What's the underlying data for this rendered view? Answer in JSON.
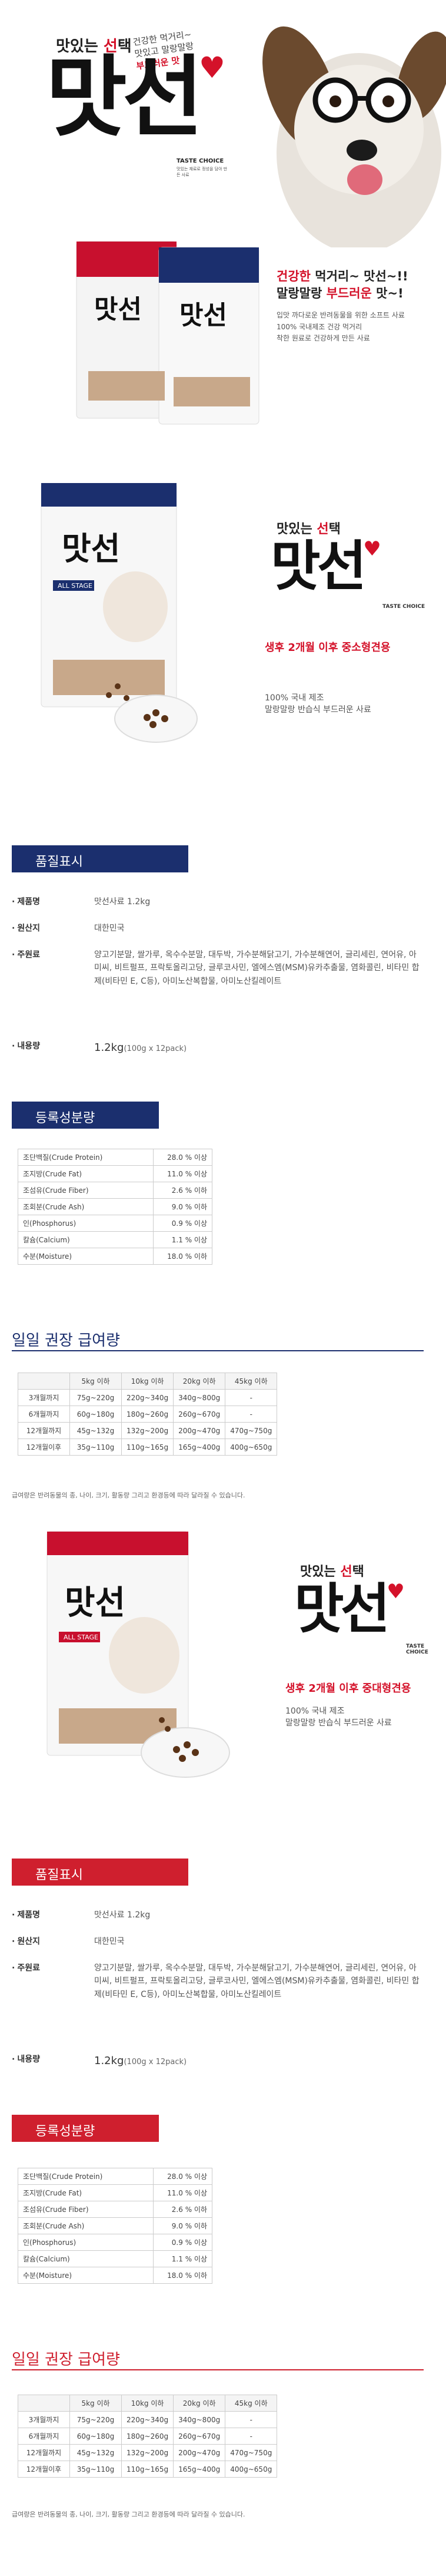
{
  "hero": {
    "title_plain1": "맛",
    "title_plain2": "있는 ",
    "title_red": "선",
    "title_plain3": "택",
    "tagline_1": "건강한 먹거리~",
    "tagline_2": "맛있고 말랑말랑",
    "tagline_3": "부드러운 맛",
    "brand": "맛선",
    "taste_choice": "TASTE CHOICE",
    "taste_sub": "맛있는 재료로 정성을 담아 만든 사료",
    "copy_red": "건강한",
    "copy_l1": " 먹거리~ 맛선~!!",
    "copy_l2a": "말랑말랑 ",
    "copy_red2": "부드러운",
    "copy_l2b": " 맛~!",
    "copy_p1": "입맛 까다로운 반려동물을 위한 소프트 사료",
    "copy_p2": "100% 국내제조 건강 먹거리",
    "copy_p3": "착한 원료로 건강하게 만든 사료"
  },
  "product1": {
    "title_a": "맛",
    "title_b": "있는 ",
    "title_red": "선",
    "title_c": "택",
    "brand": "맛선",
    "taste_choice": "TASTE CHOICE",
    "age": "생후 2개월 이후 중소형견용",
    "desc1": "100% 국내 제조",
    "desc2": "말랑말랑 반습식 부드러운 사료",
    "pack_label": "ALL STAGE"
  },
  "quality1": {
    "header": "품질표시",
    "rows": [
      {
        "label": "제품명",
        "value": "맛선사료 1.2kg"
      },
      {
        "label": "원산지",
        "value": "대한민국"
      },
      {
        "label": "주원료",
        "value": "양고기분말, 쌀가루, 옥수수분말, 대두박, 가수분해닭고기, 가수분해연어, 글리세린, 연어유, 아미씨, 비트펄프, 프락토올리고당, 글루코사민, 엘에스엠(MSM)유카추출물, 염화콜린, 비타민 합제(비타민 E, C등), 아미노산복합물, 아미노산킬레이트"
      },
      {
        "label": "내용량",
        "value_big": "1.2kg",
        "value_small": "(100g x 12pack)"
      }
    ]
  },
  "grade1": {
    "header": "등록성분량",
    "rows": [
      [
        "조단백질(Crude Protein)",
        "28.0 % 이상"
      ],
      [
        "조지방(Crude Fat)",
        "11.0 % 이상"
      ],
      [
        "조섬유(Crude Fiber)",
        "2.6 % 이하"
      ],
      [
        "조회분(Crude Ash)",
        "9.0 % 이하"
      ],
      [
        "인(Phosphorus)",
        "0.9 % 이상"
      ],
      [
        "칼슘(Calcium)",
        "1.1 % 이상"
      ],
      [
        "수분(Moisture)",
        "18.0 % 이하"
      ]
    ]
  },
  "feed1": {
    "header": "일일 권장 급여량",
    "columns": [
      "",
      "5kg 이하",
      "10kg 이하",
      "20kg 이하",
      "45kg 이하"
    ],
    "rows": [
      [
        "3개월까지",
        "75g~220g",
        "220g~340g",
        "340g~800g",
        "-"
      ],
      [
        "6개월까지",
        "60g~180g",
        "180g~260g",
        "260g~670g",
        "-"
      ],
      [
        "12개월까지",
        "45g~132g",
        "132g~200g",
        "200g~470g",
        "470g~750g"
      ],
      [
        "12개월이후",
        "35g~110g",
        "110g~165g",
        "165g~400g",
        "400g~650g"
      ]
    ],
    "note": "급여량은 반려동물의 종, 나이, 크기, 활동량 그리고 환경등에 따라 달라질 수 있습니다."
  },
  "product2": {
    "title_a": "맛",
    "title_b": "있는 ",
    "title_red": "선",
    "title_c": "택",
    "brand": "맛선",
    "taste_choice": "TASTE CHOICE",
    "age": "생후 2개월 이후 중대형견용",
    "desc1": "100% 국내 제조",
    "desc2": "말랑말랑 반습식 부드러운 사료",
    "pack_label": "ALL STAGE"
  },
  "quality2": {
    "header": "품질표시",
    "rows": [
      {
        "label": "제품명",
        "value": "맛선사료 1.2kg"
      },
      {
        "label": "원산지",
        "value": "대한민국"
      },
      {
        "label": "주원료",
        "value": "양고기분말, 쌀가루, 옥수수분말, 대두박, 가수분해닭고기, 가수분해연어, 글리세린, 연어유, 아미씨, 비트펄프, 프락토올리고당, 글루코사민, 엘에스엠(MSM)유카추출물, 염화콜린, 비타민 합제(비타민 E, C등), 아미노산복합물, 아미노산킬레이트"
      },
      {
        "label": "내용량",
        "value_big": "1.2kg",
        "value_small": "(100g x 12pack)"
      }
    ]
  },
  "grade2": {
    "header": "등록성분량",
    "rows": [
      [
        "조단백질(Crude Protein)",
        "28.0 % 이상"
      ],
      [
        "조지방(Crude Fat)",
        "11.0 % 이상"
      ],
      [
        "조섬유(Crude Fiber)",
        "2.6 % 이하"
      ],
      [
        "조회분(Crude Ash)",
        "9.0 % 이하"
      ],
      [
        "인(Phosphorus)",
        "0.9 % 이상"
      ],
      [
        "칼슘(Calcium)",
        "1.1 % 이상"
      ],
      [
        "수분(Moisture)",
        "18.0 % 이하"
      ]
    ]
  },
  "feed2": {
    "header": "일일 권장 급여량",
    "columns": [
      "",
      "5kg 이하",
      "10kg 이하",
      "20kg 이하",
      "45kg 이하"
    ],
    "rows": [
      [
        "3개월까지",
        "75g~220g",
        "220g~340g",
        "340g~800g",
        "-"
      ],
      [
        "6개월까지",
        "60g~180g",
        "180g~260g",
        "260g~670g",
        "-"
      ],
      [
        "12개월까지",
        "45g~132g",
        "132g~200g",
        "200g~470g",
        "470g~750g"
      ],
      [
        "12개월이후",
        "35g~110g",
        "110g~165g",
        "165g~400g",
        "400g~650g"
      ]
    ],
    "note": "급여량은 반려동물의 종, 나이, 크기, 활동량 그리고 환경등에 따라 달라질 수 있습니다."
  },
  "colors": {
    "brand_red": "#d4122a",
    "navy": "#1b2f6e"
  }
}
